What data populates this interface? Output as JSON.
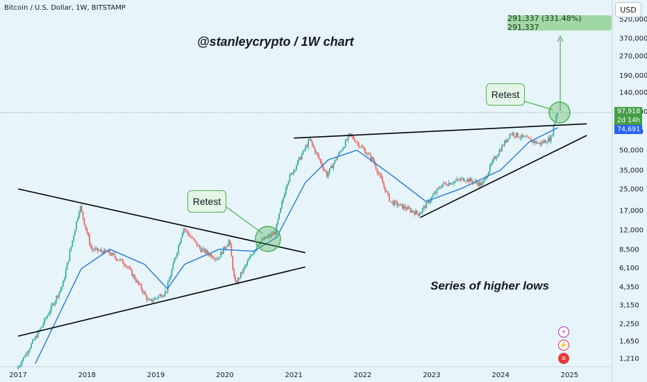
{
  "header": {
    "symbol_title": "Bitcoin / U.S. Dollar, 1W, BITSTAMP",
    "currency": "USD"
  },
  "annotations": {
    "watermark": "@stanleycrypto / 1W chart",
    "note": "Series of higher lows",
    "retest_1": "Retest",
    "retest_2": "Retest",
    "target": "291,337 (331.48%) 291,337"
  },
  "badges": {
    "price": "97,918",
    "time": "2d 14h",
    "ema": "74,691"
  },
  "icons": [
    "plus-circle-icon",
    "lightning-icon",
    "us-flag-icon"
  ],
  "colors": {
    "background": "#e7f5fb",
    "up": "#26a69a",
    "down": "#ef5350",
    "ema": "#2f7fd8",
    "trendline": "#000000",
    "highlight": "#4caf50"
  },
  "chart_data": {
    "type": "candlestick",
    "title": "Bitcoin / U.S. Dollar, 1W, BITSTAMP",
    "x_ticks": [
      "2017",
      "2018",
      "2019",
      "2020",
      "2021",
      "2022",
      "2023",
      "2024",
      "2025"
    ],
    "y_scale": "log",
    "y_ticks": [
      1210,
      1650,
      2250,
      3150,
      4350,
      6100,
      8500,
      12000,
      17000,
      25000,
      35000,
      50000,
      70000,
      100000,
      140000,
      190000,
      270000,
      370000,
      520000
    ],
    "ylim": [
      1000,
      600000
    ],
    "current_price": 97918,
    "ema_value": 74691,
    "target_price": 291337,
    "target_change_pct": 331.48,
    "price_path": [
      {
        "date": "2017-01",
        "price": 1000
      },
      {
        "date": "2017-05",
        "price": 2000
      },
      {
        "date": "2017-09",
        "price": 4500
      },
      {
        "date": "2017-12",
        "price": 18500
      },
      {
        "date": "2018-02",
        "price": 8500
      },
      {
        "date": "2018-05",
        "price": 8000
      },
      {
        "date": "2018-08",
        "price": 6500
      },
      {
        "date": "2018-11",
        "price": 4000
      },
      {
        "date": "2018-12",
        "price": 3300
      },
      {
        "date": "2019-03",
        "price": 4000
      },
      {
        "date": "2019-06",
        "price": 12500
      },
      {
        "date": "2019-09",
        "price": 8500
      },
      {
        "date": "2019-12",
        "price": 7200
      },
      {
        "date": "2020-02",
        "price": 10000
      },
      {
        "date": "2020-03",
        "price": 4500
      },
      {
        "date": "2020-07",
        "price": 9500
      },
      {
        "date": "2020-10",
        "price": 11500
      },
      {
        "date": "2020-12",
        "price": 28000
      },
      {
        "date": "2021-04",
        "price": 60000
      },
      {
        "date": "2021-07",
        "price": 32000
      },
      {
        "date": "2021-11",
        "price": 66000
      },
      {
        "date": "2022-03",
        "price": 42000
      },
      {
        "date": "2022-06",
        "price": 20000
      },
      {
        "date": "2022-11",
        "price": 16000
      },
      {
        "date": "2023-03",
        "price": 27000
      },
      {
        "date": "2023-07",
        "price": 30000
      },
      {
        "date": "2023-10",
        "price": 27000
      },
      {
        "date": "2023-12",
        "price": 42000
      },
      {
        "date": "2024-03",
        "price": 68000
      },
      {
        "date": "2024-08",
        "price": 56000
      },
      {
        "date": "2024-10",
        "price": 62000
      },
      {
        "date": "2024-11",
        "price": 97918
      }
    ],
    "ema_path": [
      {
        "date": "2017-04",
        "price": 1100
      },
      {
        "date": "2017-12",
        "price": 6000
      },
      {
        "date": "2018-05",
        "price": 8500
      },
      {
        "date": "2018-11",
        "price": 6500
      },
      {
        "date": "2019-03",
        "price": 4200
      },
      {
        "date": "2019-06",
        "price": 6500
      },
      {
        "date": "2019-12",
        "price": 8500
      },
      {
        "date": "2020-06",
        "price": 8200
      },
      {
        "date": "2020-10",
        "price": 10500
      },
      {
        "date": "2021-03",
        "price": 28000
      },
      {
        "date": "2021-07",
        "price": 42000
      },
      {
        "date": "2021-12",
        "price": 50000
      },
      {
        "date": "2022-06",
        "price": 32000
      },
      {
        "date": "2022-12",
        "price": 20000
      },
      {
        "date": "2023-06",
        "price": 25000
      },
      {
        "date": "2024-01",
        "price": 35000
      },
      {
        "date": "2024-06",
        "price": 58000
      },
      {
        "date": "2024-11",
        "price": 74691
      }
    ],
    "trendlines": [
      {
        "from": {
          "date": "2017-01",
          "price": 25000
        },
        "to": {
          "date": "2021-03",
          "price": 8000
        }
      },
      {
        "from": {
          "date": "2017-01",
          "price": 1800
        },
        "to": {
          "date": "2021-03",
          "price": 6200
        }
      },
      {
        "from": {
          "date": "2021-01",
          "price": 62000
        },
        "to": {
          "date": "2025-04",
          "price": 80000
        }
      },
      {
        "from": {
          "date": "2022-11",
          "price": 15000
        },
        "to": {
          "date": "2025-04",
          "price": 65000
        }
      }
    ]
  }
}
